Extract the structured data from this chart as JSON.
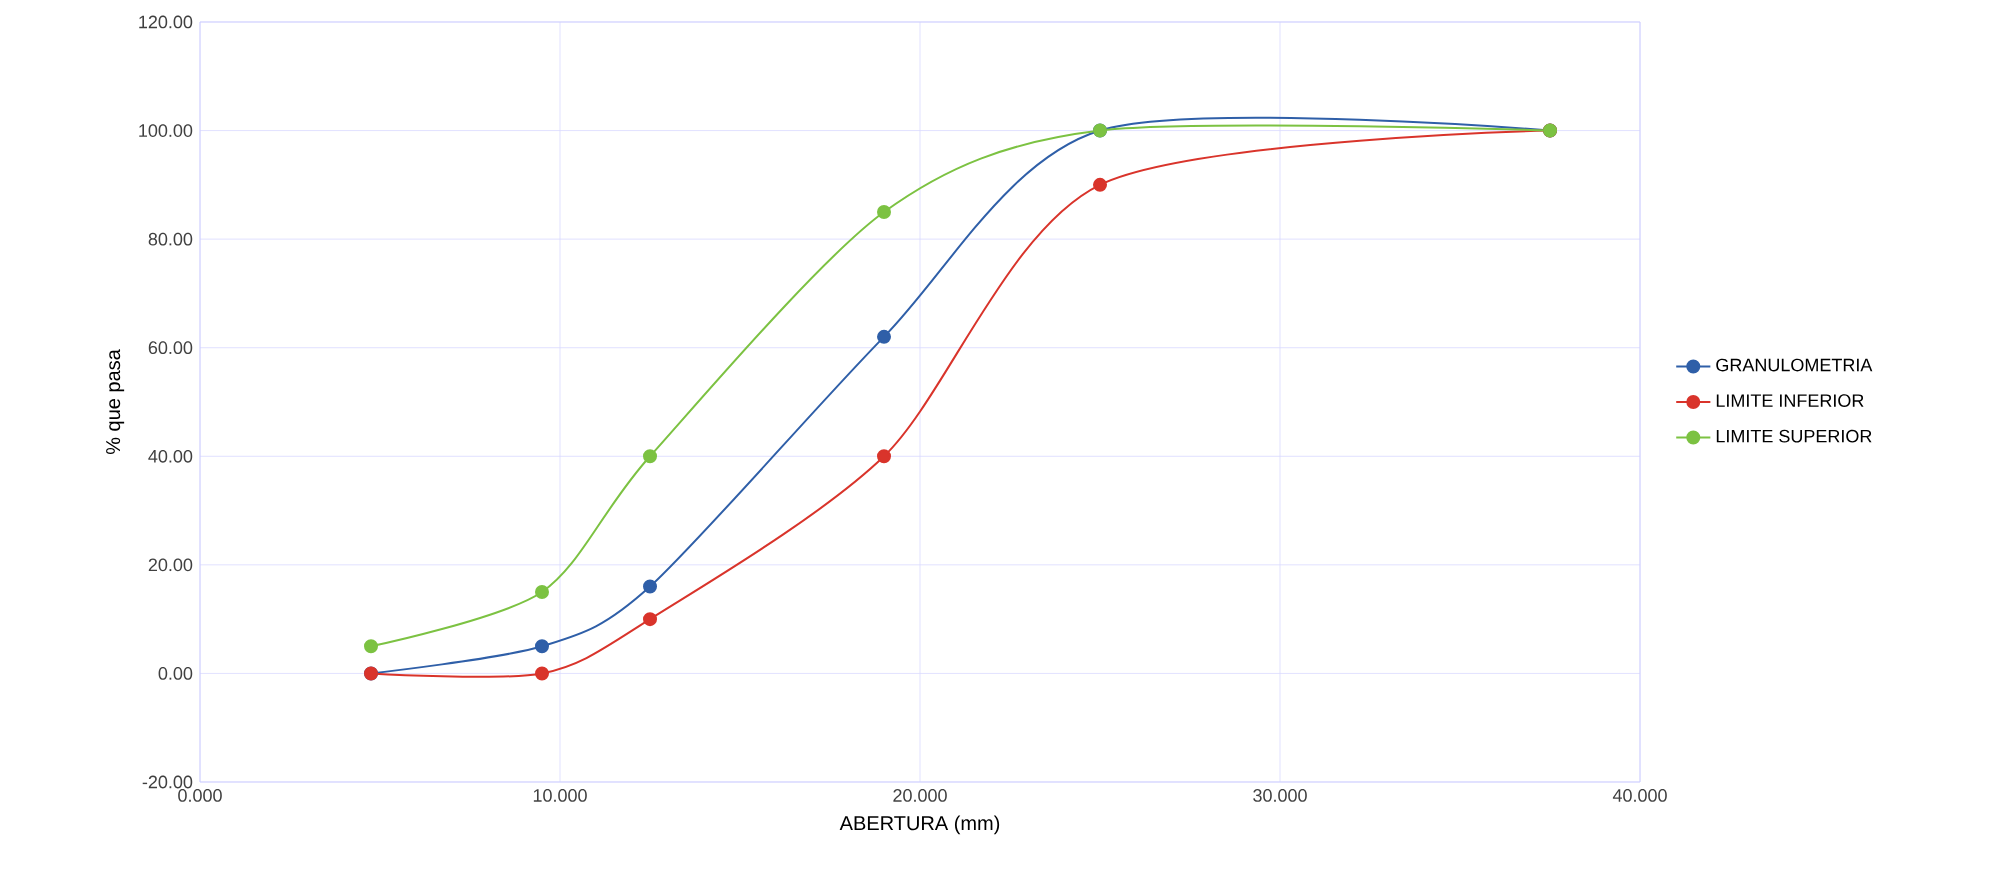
{
  "chart_data": {
    "type": "line",
    "xlabel": "ABERTURA (mm)",
    "ylabel": "% que pasa",
    "x": [
      4.75,
      9.5,
      12.5,
      19.0,
      25.0,
      37.5
    ],
    "series": [
      {
        "name": "GRANULOMETRIA",
        "color": "#2f5fa8",
        "values": [
          0,
          5,
          16,
          62,
          100,
          100
        ]
      },
      {
        "name": "LIMITE INFERIOR",
        "color": "#d9342b",
        "values": [
          0,
          0,
          10,
          40,
          90,
          100
        ]
      },
      {
        "name": "LIMITE SUPERIOR",
        "color": "#7cc242",
        "values": [
          5,
          15,
          40,
          85,
          100,
          100
        ]
      }
    ],
    "xlim": [
      0,
      40
    ],
    "xticks": [
      {
        "value": 0,
        "label": "0.000"
      },
      {
        "value": 10,
        "label": "10.000"
      },
      {
        "value": 20,
        "label": "20.000"
      },
      {
        "value": 30,
        "label": "30.000"
      },
      {
        "value": 40,
        "label": "40.000"
      }
    ],
    "ylim": [
      -20,
      120
    ],
    "yticks": [
      {
        "value": -20,
        "label": "-20.00"
      },
      {
        "value": 0,
        "label": "0.00"
      },
      {
        "value": 20,
        "label": "20.00"
      },
      {
        "value": 40,
        "label": "40.00"
      },
      {
        "value": 60,
        "label": "60.00"
      },
      {
        "value": 80,
        "label": "80.00"
      },
      {
        "value": 100,
        "label": "100.00"
      },
      {
        "value": 120,
        "label": "120.00"
      }
    ],
    "grid": true,
    "legend": "right",
    "marker": "circle",
    "line_style": "solid"
  }
}
